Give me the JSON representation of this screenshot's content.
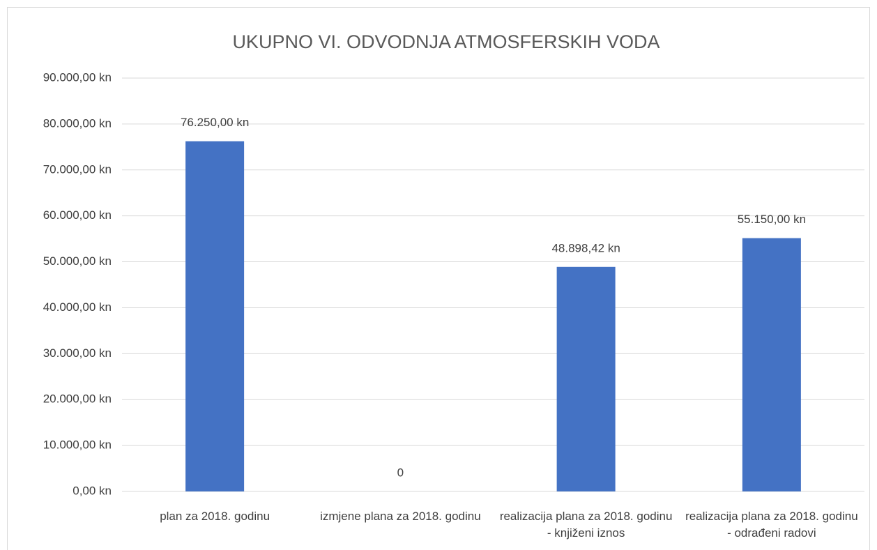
{
  "chart_data": {
    "type": "bar",
    "title": "UKUPNO VI. ODVODNJA ATMOSFERSKIH VODA",
    "categories": [
      "plan za 2018. godinu",
      "izmjene plana za 2018. godinu",
      "realizacija plana za 2018. godinu - knjiženi iznos",
      "realizacija plana za 2018. godinu - odrađeni radovi"
    ],
    "values": [
      76250,
      0,
      48898.42,
      55150
    ],
    "value_labels": [
      "76.250,00 kn",
      "0",
      "48.898,42 kn",
      "55.150,00 kn"
    ],
    "color": "#4472c4",
    "ylim": [
      0,
      90000
    ],
    "yticks": [
      {
        "value": 0,
        "label": "0,00 kn"
      },
      {
        "value": 10000,
        "label": "10.000,00 kn"
      },
      {
        "value": 20000,
        "label": "20.000,00 kn"
      },
      {
        "value": 30000,
        "label": "30.000,00 kn"
      },
      {
        "value": 40000,
        "label": "40.000,00 kn"
      },
      {
        "value": 50000,
        "label": "50.000,00 kn"
      },
      {
        "value": 60000,
        "label": "60.000,00 kn"
      },
      {
        "value": 70000,
        "label": "70.000,00 kn"
      },
      {
        "value": 80000,
        "label": "80.000,00 kn"
      },
      {
        "value": 90000,
        "label": "90.000,00 kn"
      }
    ],
    "grid": true
  }
}
